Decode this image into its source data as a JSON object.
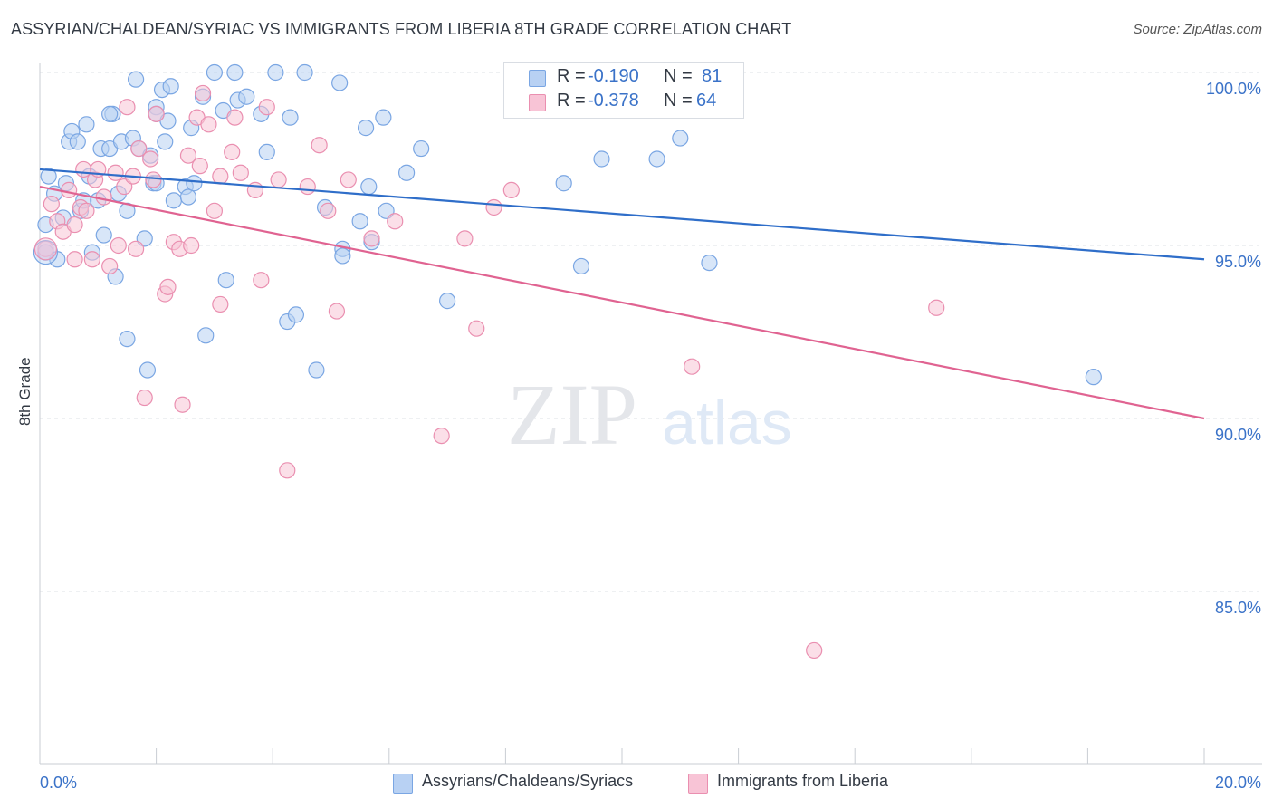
{
  "title": "ASSYRIAN/CHALDEAN/SYRIAC VS IMMIGRANTS FROM LIBERIA 8TH GRADE CORRELATION CHART",
  "source": "Source: ZipAtlas.com",
  "watermark": {
    "zip": "ZIP",
    "atlas": "atlas"
  },
  "legend": {
    "r_label": "R =",
    "n_label": "N =",
    "rows": [
      {
        "r": "-0.190",
        "n": "81",
        "color": "#7aa6e3"
      },
      {
        "r": "-0.378",
        "n": "64",
        "color": "#ea8fb0"
      }
    ]
  },
  "chart_data": {
    "type": "scatter",
    "ylabel": "8th Grade",
    "xlim": [
      0,
      20
    ],
    "ylim": [
      80.5,
      100.5
    ],
    "x_tick_labels": [
      "0.0%",
      "20.0%"
    ],
    "y_ticks": [
      {
        "value": 100,
        "label": "100.0%"
      },
      {
        "value": 95,
        "label": "95.0%"
      },
      {
        "value": 90,
        "label": "90.0%"
      },
      {
        "value": 85,
        "label": "85.0%"
      }
    ],
    "grid": true,
    "series": [
      {
        "name": "Assyrians/Chaldeans/Syriacs",
        "color": "#7aa6e3",
        "fill": "#b8d1f3",
        "line_color": "#2f6ec9",
        "trend": [
          [
            0,
            97.2
          ],
          [
            20,
            94.6
          ]
        ],
        "points": [
          [
            0.1,
            95.6
          ],
          [
            0.15,
            97.0
          ],
          [
            0.25,
            96.5
          ],
          [
            0.3,
            94.6
          ],
          [
            0.4,
            95.8
          ],
          [
            0.45,
            96.8
          ],
          [
            0.5,
            98.0
          ],
          [
            0.55,
            98.3
          ],
          [
            0.65,
            98.0
          ],
          [
            0.7,
            96.0
          ],
          [
            0.75,
            96.3
          ],
          [
            0.8,
            98.5
          ],
          [
            0.85,
            97.0
          ],
          [
            0.9,
            94.8
          ],
          [
            1.0,
            96.3
          ],
          [
            1.05,
            97.8
          ],
          [
            1.1,
            95.3
          ],
          [
            1.2,
            97.8
          ],
          [
            1.25,
            98.8
          ],
          [
            1.3,
            94.1
          ],
          [
            1.35,
            96.5
          ],
          [
            1.4,
            98.0
          ],
          [
            1.5,
            92.3
          ],
          [
            1.5,
            96.0
          ],
          [
            1.6,
            98.1
          ],
          [
            1.65,
            99.8
          ],
          [
            1.7,
            97.8
          ],
          [
            1.8,
            95.2
          ],
          [
            1.85,
            91.4
          ],
          [
            1.9,
            97.6
          ],
          [
            1.95,
            96.8
          ],
          [
            2.0,
            99.0
          ],
          [
            2.0,
            98.8
          ],
          [
            2.1,
            99.5
          ],
          [
            2.15,
            98.0
          ],
          [
            2.2,
            98.6
          ],
          [
            2.25,
            99.6
          ],
          [
            2.3,
            96.3
          ],
          [
            2.5,
            96.7
          ],
          [
            2.55,
            96.4
          ],
          [
            2.6,
            98.4
          ],
          [
            2.65,
            96.8
          ],
          [
            2.8,
            99.3
          ],
          [
            2.85,
            92.4
          ],
          [
            3.0,
            100.0
          ],
          [
            3.15,
            98.9
          ],
          [
            3.2,
            94.0
          ],
          [
            3.35,
            100.0
          ],
          [
            3.4,
            99.2
          ],
          [
            3.55,
            99.3
          ],
          [
            3.8,
            98.8
          ],
          [
            3.9,
            97.7
          ],
          [
            4.05,
            100.0
          ],
          [
            4.25,
            92.8
          ],
          [
            4.3,
            98.7
          ],
          [
            4.4,
            93.0
          ],
          [
            4.55,
            100.0
          ],
          [
            4.75,
            91.4
          ],
          [
            4.9,
            96.1
          ],
          [
            5.15,
            99.7
          ],
          [
            5.2,
            94.9
          ],
          [
            5.2,
            94.7
          ],
          [
            5.5,
            95.7
          ],
          [
            5.6,
            98.4
          ],
          [
            5.65,
            96.7
          ],
          [
            5.7,
            95.1
          ],
          [
            5.9,
            98.7
          ],
          [
            5.95,
            96.0
          ],
          [
            6.3,
            97.1
          ],
          [
            6.55,
            97.8
          ],
          [
            7.0,
            93.4
          ],
          [
            9.0,
            96.8
          ],
          [
            9.3,
            94.4
          ],
          [
            9.65,
            97.5
          ],
          [
            10.6,
            97.5
          ],
          [
            11.0,
            98.1
          ],
          [
            11.5,
            94.5
          ],
          [
            18.1,
            91.2
          ],
          [
            0.1,
            94.8
          ],
          [
            2.0,
            96.8
          ],
          [
            1.2,
            98.8
          ]
        ]
      },
      {
        "name": "Immigrants from Liberia",
        "color": "#ea8fb0",
        "fill": "#f8c4d6",
        "line_color": "#e06391",
        "trend": [
          [
            0,
            96.7
          ],
          [
            20,
            90.0
          ]
        ],
        "points": [
          [
            0.1,
            94.9
          ],
          [
            0.2,
            96.2
          ],
          [
            0.3,
            95.7
          ],
          [
            0.4,
            95.4
          ],
          [
            0.5,
            96.6
          ],
          [
            0.6,
            94.6
          ],
          [
            0.6,
            95.6
          ],
          [
            0.7,
            96.1
          ],
          [
            0.75,
            97.2
          ],
          [
            0.8,
            96.0
          ],
          [
            0.9,
            94.6
          ],
          [
            0.95,
            96.9
          ],
          [
            1.0,
            97.2
          ],
          [
            1.1,
            96.4
          ],
          [
            1.2,
            94.4
          ],
          [
            1.3,
            97.1
          ],
          [
            1.35,
            95.0
          ],
          [
            1.45,
            96.7
          ],
          [
            1.5,
            99.0
          ],
          [
            1.6,
            97.0
          ],
          [
            1.65,
            94.9
          ],
          [
            1.7,
            97.8
          ],
          [
            1.8,
            90.6
          ],
          [
            1.9,
            97.5
          ],
          [
            1.95,
            96.9
          ],
          [
            2.0,
            98.8
          ],
          [
            2.15,
            93.6
          ],
          [
            2.2,
            93.8
          ],
          [
            2.3,
            95.1
          ],
          [
            2.4,
            94.9
          ],
          [
            2.45,
            90.4
          ],
          [
            2.55,
            97.6
          ],
          [
            2.6,
            95.0
          ],
          [
            2.7,
            98.7
          ],
          [
            2.75,
            97.3
          ],
          [
            2.8,
            99.4
          ],
          [
            2.9,
            98.5
          ],
          [
            3.0,
            96.0
          ],
          [
            3.1,
            97.0
          ],
          [
            3.1,
            93.3
          ],
          [
            3.3,
            97.7
          ],
          [
            3.35,
            98.7
          ],
          [
            3.45,
            97.1
          ],
          [
            3.7,
            96.6
          ],
          [
            3.8,
            94.0
          ],
          [
            3.9,
            99.0
          ],
          [
            4.1,
            96.9
          ],
          [
            4.25,
            88.5
          ],
          [
            4.6,
            96.7
          ],
          [
            4.8,
            97.9
          ],
          [
            4.95,
            96.0
          ],
          [
            5.1,
            93.1
          ],
          [
            5.3,
            96.9
          ],
          [
            5.7,
            95.2
          ],
          [
            6.1,
            95.7
          ],
          [
            6.9,
            89.5
          ],
          [
            7.3,
            95.2
          ],
          [
            7.5,
            92.6
          ],
          [
            7.8,
            96.1
          ],
          [
            8.1,
            96.6
          ],
          [
            9.45,
            100.0
          ],
          [
            11.2,
            91.5
          ],
          [
            13.3,
            83.3
          ],
          [
            15.4,
            93.2
          ]
        ]
      }
    ]
  },
  "bottom_legend": [
    {
      "label": "Assyrians/Chaldeans/Syriacs",
      "fill": "#b8d1f3",
      "stroke": "#7aa6e3"
    },
    {
      "label": "Immigrants from Liberia",
      "fill": "#f8c4d6",
      "stroke": "#ea8fb0"
    }
  ]
}
